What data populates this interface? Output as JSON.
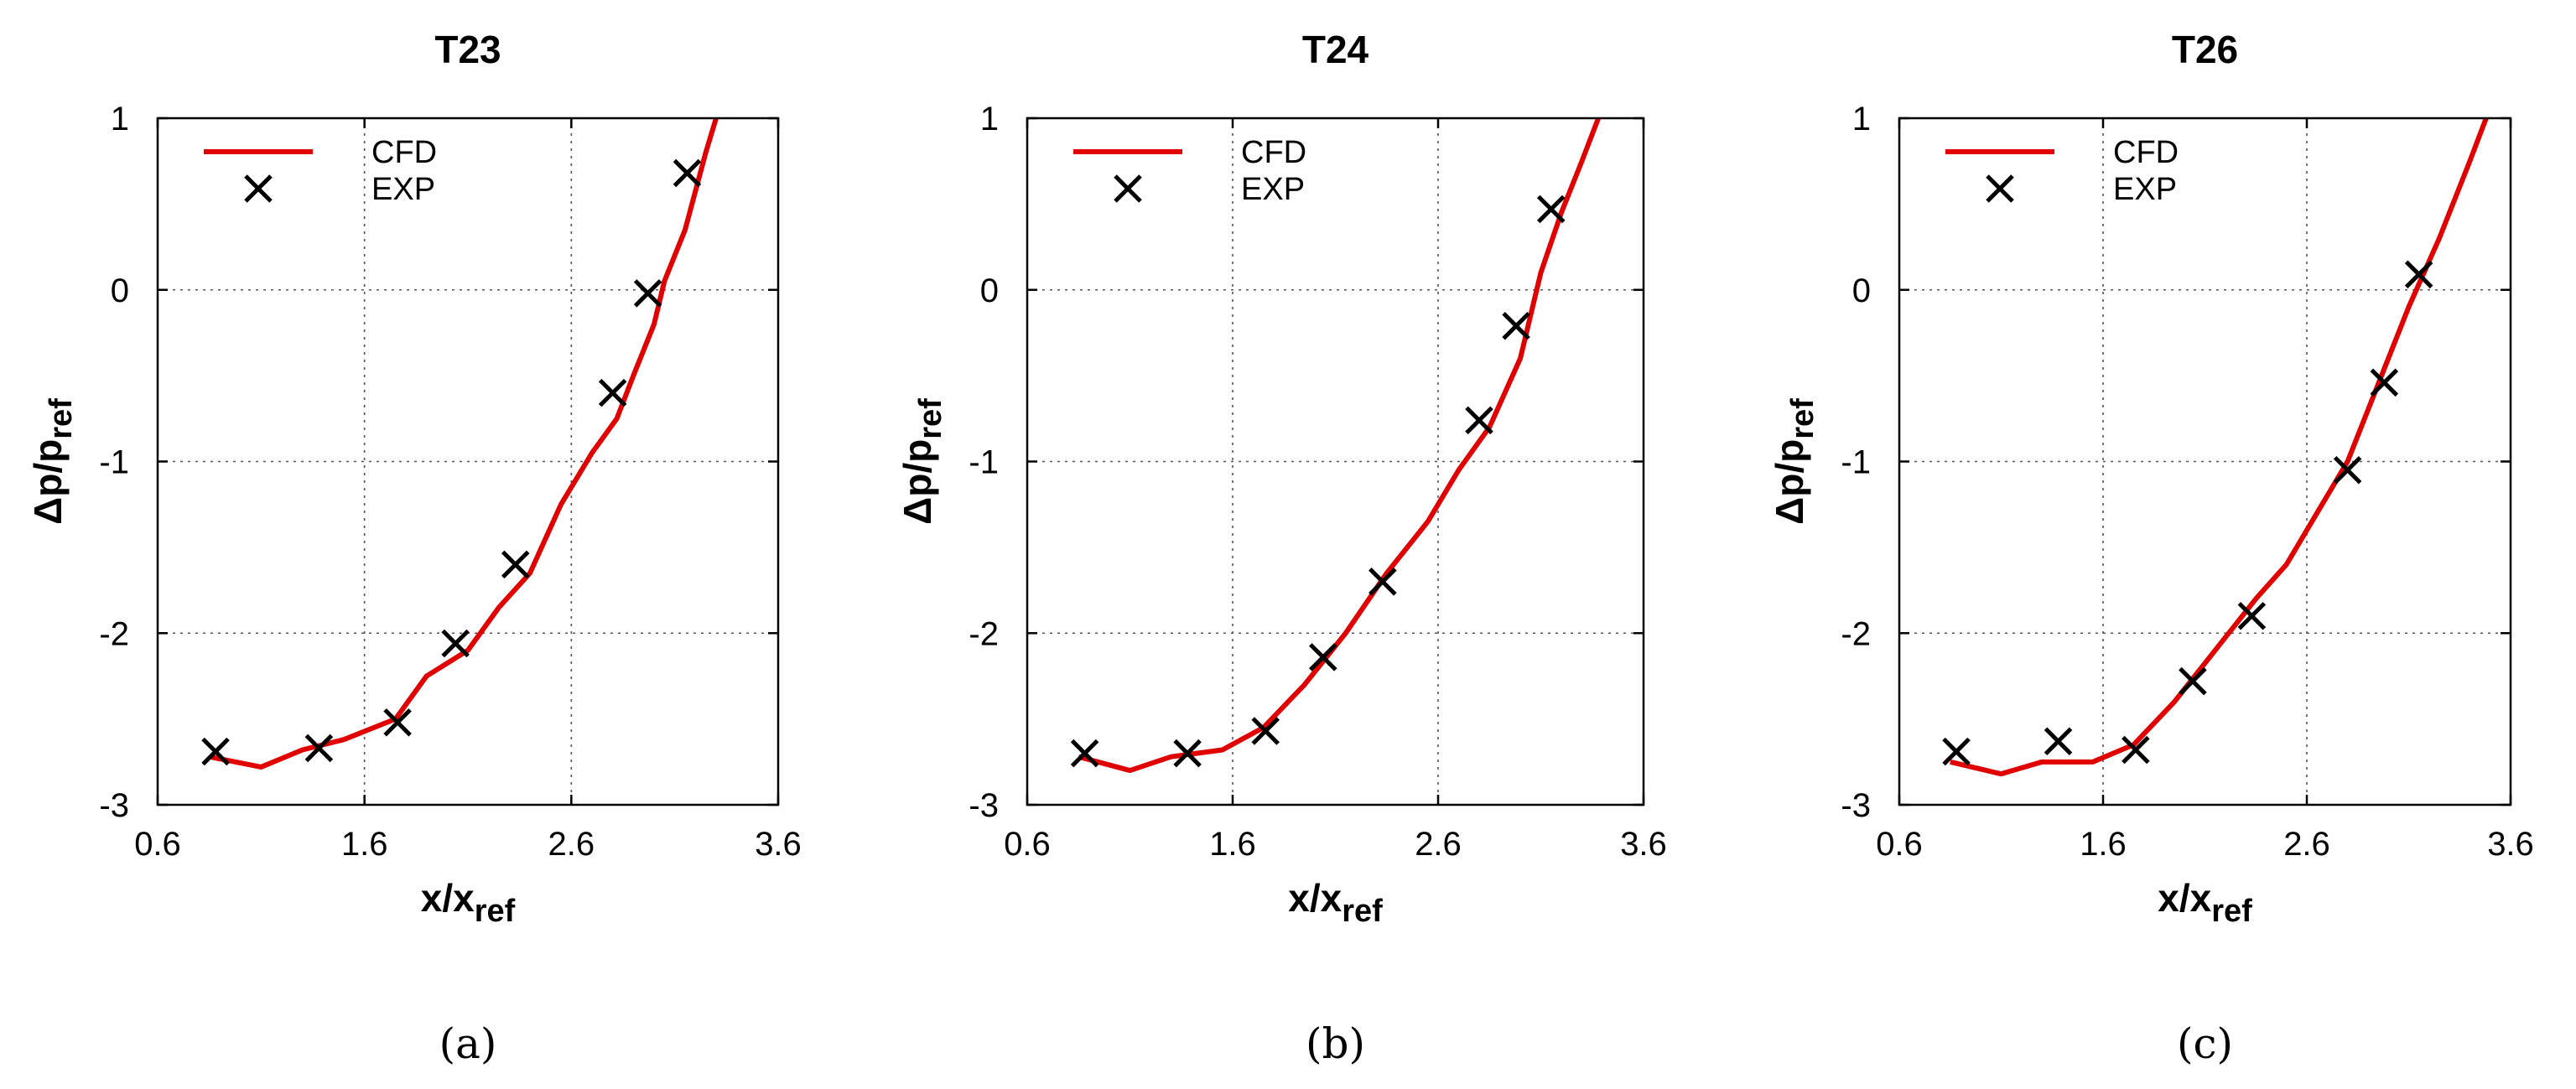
{
  "chart_data": [
    {
      "type": "line",
      "title": "T23",
      "caption": "(a)",
      "xlabel": "x/x",
      "xlabel_sub": "ref",
      "ylabel": "Δp/p",
      "ylabel_sub": "ref",
      "xlim": [
        0.6,
        3.6
      ],
      "ylim": [
        -3,
        1
      ],
      "xticks": [
        "0.6",
        "1.6",
        "2.6",
        "3.6"
      ],
      "yticks": [
        "-3",
        "-2",
        "-1",
        "0",
        "1"
      ],
      "legend": [
        "CFD",
        "EXP"
      ],
      "series": [
        {
          "name": "CFD",
          "color": "#e00000",
          "x": [
            0.85,
            1.1,
            1.3,
            1.5,
            1.75,
            1.9,
            2.1,
            2.25,
            2.4,
            2.55,
            2.7,
            2.82,
            2.9,
            3.0,
            3.05,
            3.15,
            3.25,
            3.3
          ],
          "y": [
            -2.72,
            -2.78,
            -2.68,
            -2.62,
            -2.5,
            -2.25,
            -2.1,
            -1.85,
            -1.65,
            -1.25,
            -0.95,
            -0.75,
            -0.5,
            -0.2,
            0.05,
            0.35,
            0.8,
            1.0
          ]
        },
        {
          "name": "EXP",
          "color": "#000000",
          "x": [
            0.88,
            1.38,
            1.76,
            2.04,
            2.33,
            2.8,
            2.97,
            3.16
          ],
          "y": [
            -2.69,
            -2.67,
            -2.52,
            -2.06,
            -1.6,
            -0.6,
            -0.02,
            0.68
          ]
        }
      ]
    },
    {
      "type": "line",
      "title": "T24",
      "caption": "(b)",
      "xlabel": "x/x",
      "xlabel_sub": "ref",
      "ylabel": "Δp/p",
      "ylabel_sub": "ref",
      "xlim": [
        0.6,
        3.6
      ],
      "ylim": [
        -3,
        1
      ],
      "xticks": [
        "0.6",
        "1.6",
        "2.6",
        "3.6"
      ],
      "yticks": [
        "-3",
        "-2",
        "-1",
        "0",
        "1"
      ],
      "legend": [
        "CFD",
        "EXP"
      ],
      "series": [
        {
          "name": "CFD",
          "color": "#e00000",
          "x": [
            0.85,
            1.1,
            1.3,
            1.55,
            1.75,
            1.95,
            2.15,
            2.35,
            2.55,
            2.7,
            2.85,
            3.0,
            3.1,
            3.2,
            3.3,
            3.38
          ],
          "y": [
            -2.72,
            -2.8,
            -2.72,
            -2.68,
            -2.55,
            -2.3,
            -2.0,
            -1.65,
            -1.35,
            -1.05,
            -0.8,
            -0.4,
            0.1,
            0.45,
            0.75,
            1.0
          ]
        },
        {
          "name": "EXP",
          "color": "#000000",
          "x": [
            0.88,
            1.38,
            1.76,
            2.04,
            2.33,
            2.8,
            2.98,
            3.15
          ],
          "y": [
            -2.7,
            -2.7,
            -2.57,
            -2.14,
            -1.7,
            -0.76,
            -0.21,
            0.47
          ]
        }
      ]
    },
    {
      "type": "line",
      "title": "T26",
      "caption": "(c)",
      "xlabel": "x/x",
      "xlabel_sub": "ref",
      "ylabel": "Δp/p",
      "ylabel_sub": "ref",
      "xlim": [
        0.6,
        3.6
      ],
      "ylim": [
        -3,
        1
      ],
      "xticks": [
        "0.6",
        "1.6",
        "2.6",
        "3.6"
      ],
      "yticks": [
        "-3",
        "-2",
        "-1",
        "0",
        "1"
      ],
      "legend": [
        "CFD",
        "EXP"
      ],
      "series": [
        {
          "name": "CFD",
          "color": "#e00000",
          "x": [
            0.85,
            1.1,
            1.3,
            1.55,
            1.75,
            1.95,
            2.15,
            2.35,
            2.5,
            2.65,
            2.8,
            2.95,
            3.1,
            3.25,
            3.4,
            3.48
          ],
          "y": [
            -2.75,
            -2.82,
            -2.75,
            -2.75,
            -2.65,
            -2.4,
            -2.1,
            -1.8,
            -1.6,
            -1.3,
            -1.0,
            -0.55,
            -0.1,
            0.3,
            0.75,
            1.0
          ]
        },
        {
          "name": "EXP",
          "color": "#000000",
          "x": [
            0.88,
            1.38,
            1.76,
            2.04,
            2.33,
            2.8,
            2.98,
            3.15
          ],
          "y": [
            -2.69,
            -2.63,
            -2.68,
            -2.28,
            -1.9,
            -1.05,
            -0.54,
            0.09
          ]
        }
      ]
    }
  ]
}
